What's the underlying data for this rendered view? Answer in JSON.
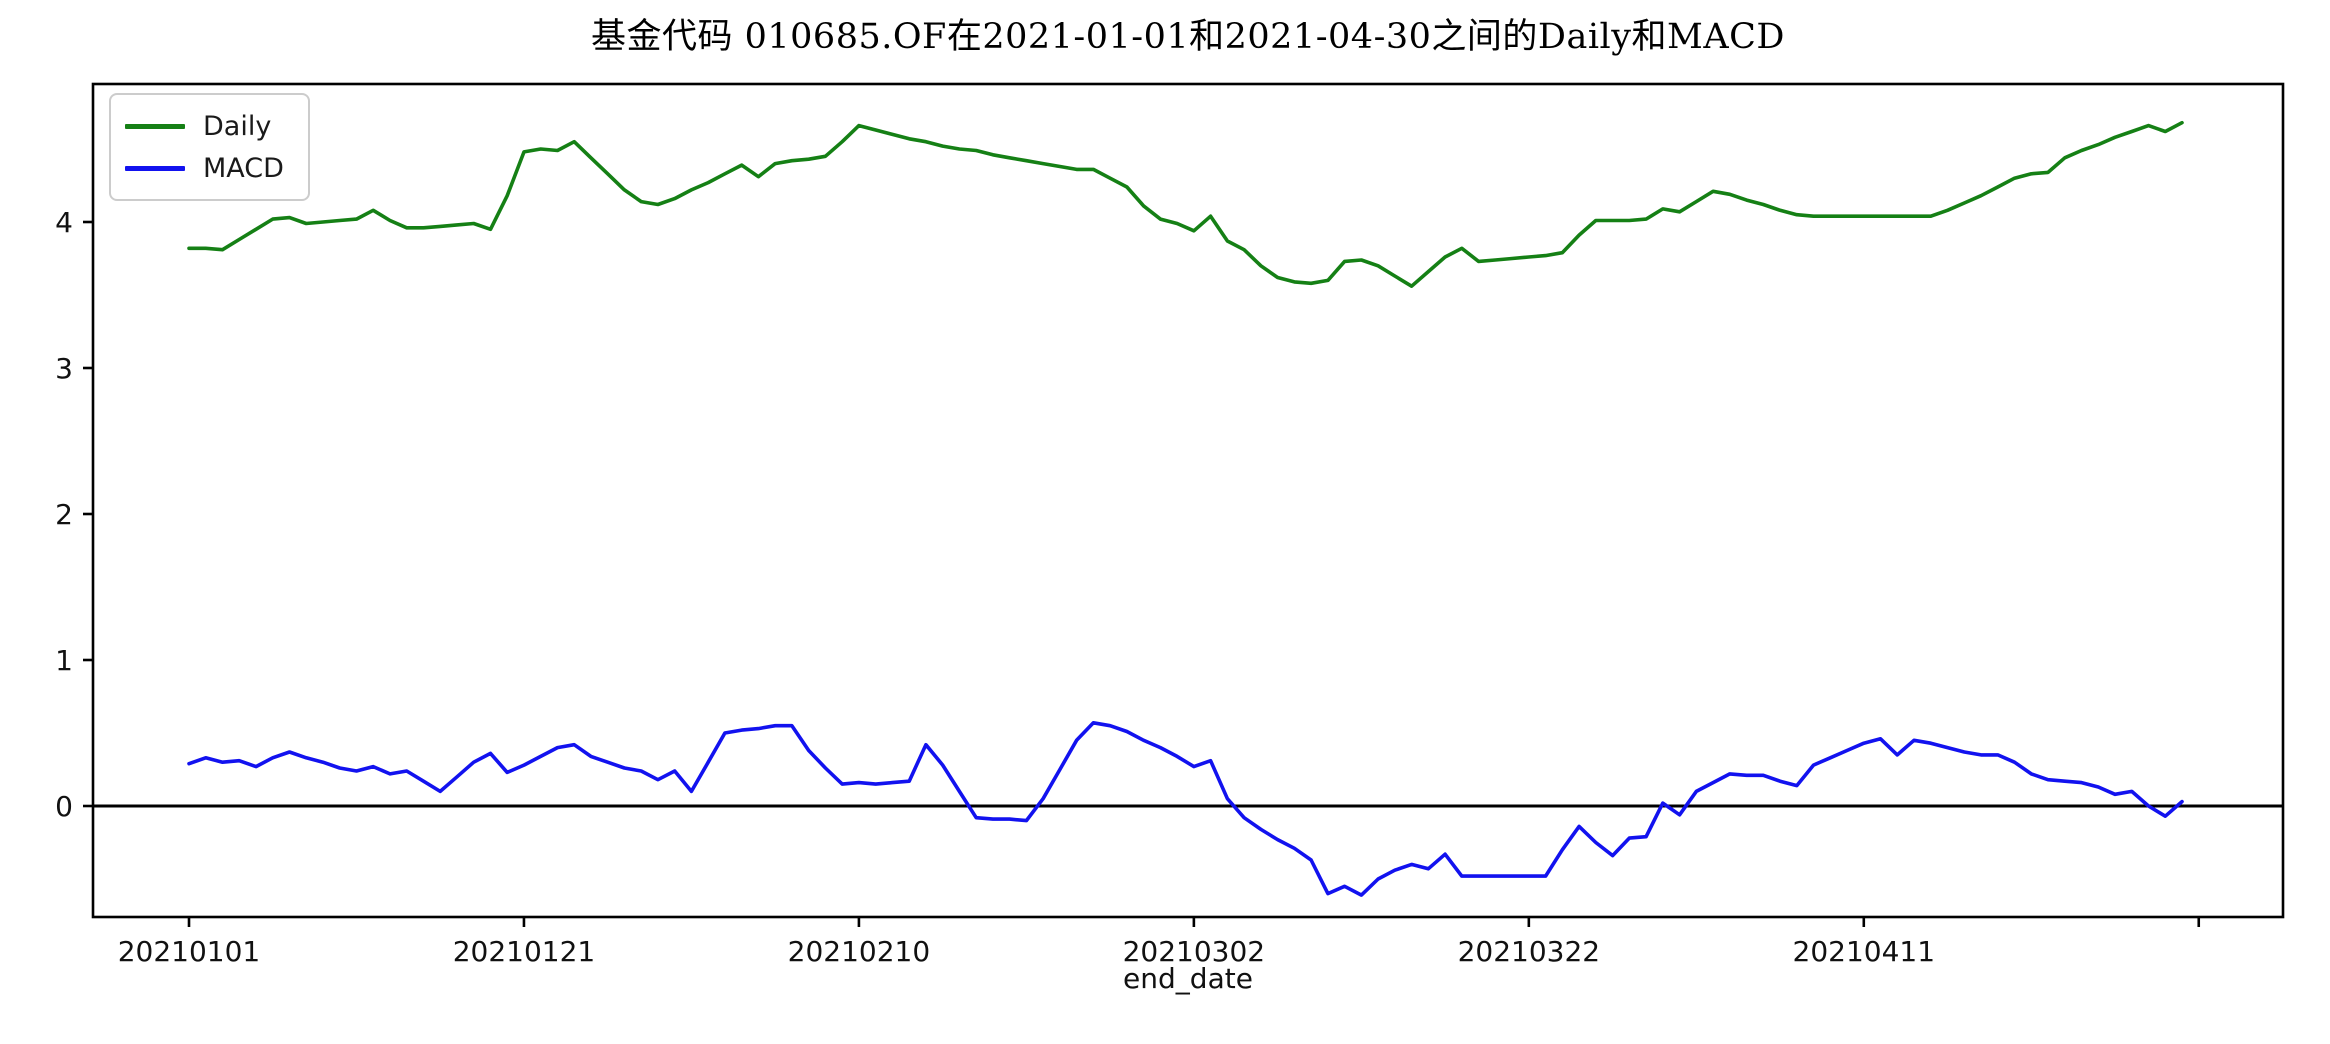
{
  "figure": {
    "background_color": "#ffffff",
    "axes": {
      "spine_color": "#000000",
      "zero_line_color": "#000000",
      "tick_label_color": "#111111"
    }
  },
  "chart_data": {
    "type": "line",
    "title": "基金代码 010685.OF在2021-01-01和2021-04-30之间的Daily和MACD",
    "xlabel": "end_date",
    "ylabel": "",
    "n_points": 120,
    "x_range_dates": [
      "2021-01-01",
      "2021-04-30"
    ],
    "x_tick_positions": [
      0,
      20,
      40,
      60,
      80,
      100,
      120
    ],
    "x_tick_labels": [
      "20210101",
      "20210121",
      "20210210",
      "20210302",
      "20210322",
      "20210411",
      ""
    ],
    "y_ticks": [
      0,
      1,
      2,
      3,
      4
    ],
    "ylim": [
      -0.76,
      4.95
    ],
    "grid": false,
    "zero_line": 0,
    "legend_position": "upper-left",
    "series": [
      {
        "name": "Daily",
        "color": "#158015",
        "values": [
          3.82,
          3.82,
          3.81,
          3.88,
          3.95,
          4.02,
          4.03,
          3.99,
          4.0,
          4.01,
          4.02,
          4.08,
          4.01,
          3.96,
          3.96,
          3.97,
          3.98,
          3.99,
          3.95,
          4.18,
          4.48,
          4.5,
          4.49,
          4.55,
          4.44,
          4.33,
          4.22,
          4.14,
          4.12,
          4.16,
          4.22,
          4.27,
          4.33,
          4.39,
          4.31,
          4.4,
          4.42,
          4.43,
          4.45,
          4.55,
          4.66,
          4.63,
          4.6,
          4.57,
          4.55,
          4.52,
          4.5,
          4.49,
          4.46,
          4.44,
          4.42,
          4.4,
          4.38,
          4.36,
          4.36,
          4.3,
          4.24,
          4.11,
          4.02,
          3.99,
          3.94,
          4.04,
          3.87,
          3.81,
          3.7,
          3.62,
          3.59,
          3.58,
          3.6,
          3.73,
          3.74,
          3.7,
          3.63,
          3.56,
          3.66,
          3.76,
          3.82,
          3.73,
          3.74,
          3.75,
          3.76,
          3.77,
          3.79,
          3.91,
          4.01,
          4.01,
          4.01,
          4.02,
          4.09,
          4.07,
          4.14,
          4.21,
          4.19,
          4.15,
          4.12,
          4.08,
          4.05,
          4.04,
          4.04,
          4.04,
          4.04,
          4.04,
          4.04,
          4.04,
          4.04,
          4.08,
          4.13,
          4.18,
          4.24,
          4.3,
          4.33,
          4.34,
          4.44,
          4.49,
          4.53,
          4.58,
          4.62,
          4.66,
          4.62,
          4.68
        ]
      },
      {
        "name": "MACD",
        "color": "#1212ef",
        "values": [
          0.29,
          0.33,
          0.3,
          0.31,
          0.27,
          0.33,
          0.37,
          0.33,
          0.3,
          0.26,
          0.24,
          0.27,
          0.22,
          0.24,
          0.17,
          0.1,
          0.2,
          0.3,
          0.36,
          0.23,
          0.28,
          0.34,
          0.4,
          0.42,
          0.34,
          0.3,
          0.26,
          0.24,
          0.18,
          0.24,
          0.1,
          0.3,
          0.5,
          0.52,
          0.53,
          0.55,
          0.55,
          0.38,
          0.26,
          0.15,
          0.16,
          0.15,
          0.16,
          0.17,
          0.42,
          0.28,
          0.1,
          -0.08,
          -0.09,
          -0.09,
          -0.1,
          0.05,
          0.25,
          0.45,
          0.57,
          0.55,
          0.51,
          0.45,
          0.4,
          0.34,
          0.27,
          0.31,
          0.05,
          -0.08,
          -0.16,
          -0.23,
          -0.29,
          -0.37,
          -0.6,
          -0.55,
          -0.61,
          -0.5,
          -0.44,
          -0.4,
          -0.43,
          -0.33,
          -0.48,
          -0.48,
          -0.48,
          -0.48,
          -0.48,
          -0.48,
          -0.3,
          -0.14,
          -0.25,
          -0.34,
          -0.22,
          -0.21,
          0.02,
          -0.06,
          0.1,
          0.16,
          0.22,
          0.21,
          0.21,
          0.17,
          0.14,
          0.28,
          0.33,
          0.38,
          0.43,
          0.46,
          0.35,
          0.45,
          0.43,
          0.4,
          0.37,
          0.35,
          0.35,
          0.3,
          0.22,
          0.18,
          0.17,
          0.16,
          0.13,
          0.08,
          0.1,
          0.0,
          -0.07,
          0.03
        ]
      }
    ]
  }
}
